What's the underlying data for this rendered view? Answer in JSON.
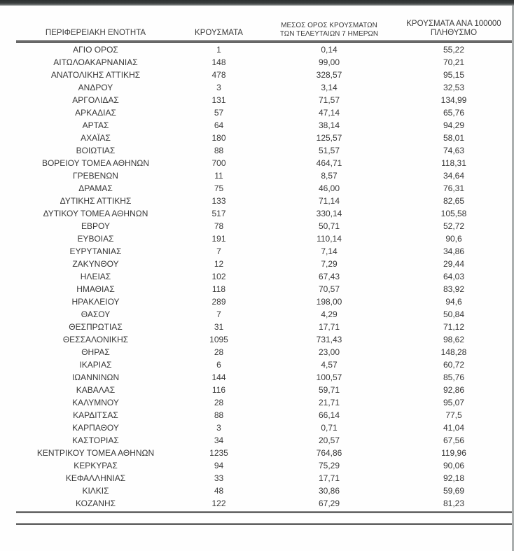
{
  "table": {
    "headers": {
      "region": "ΠΕΡΙΦΕΡΕΙΑΚΗ ΕΝΟΤΗΤΑ",
      "cases": "ΚΡΟΥΣΜΑΤΑ",
      "avg_line1": "ΜΕΣΟΣ ΟΡΟΣ ΚΡΟΥΣΜΑΤΩΝ",
      "avg_line2": "ΤΩΝ ΤΕΛΕΥΤΑΙΩΝ 7 ΗΜΕΡΩΝ",
      "per100k_line1": "ΚΡΟΥΣΜΑΤΑ ΑΝΑ 100000",
      "per100k_line2": "ΠΛΗΘΥΣΜΟ"
    },
    "rows": [
      [
        "ΑΓΙΟ ΟΡΟΣ",
        "1",
        "0,14",
        "55,22"
      ],
      [
        "ΑΙΤΩΛΟΑΚΑΡΝΑΝΙΑΣ",
        "148",
        "99,00",
        "70,21"
      ],
      [
        "ΑΝΑΤΟΛΙΚΗΣ ΑΤΤΙΚΗΣ",
        "478",
        "328,57",
        "95,15"
      ],
      [
        "ΑΝΔΡΟΥ",
        "3",
        "3,14",
        "32,53"
      ],
      [
        "ΑΡΓΟΛΙΔΑΣ",
        "131",
        "71,57",
        "134,99"
      ],
      [
        "ΑΡΚΑΔΙΑΣ",
        "57",
        "47,14",
        "65,76"
      ],
      [
        "ΑΡΤΑΣ",
        "64",
        "38,14",
        "94,29"
      ],
      [
        "ΑΧΑΪΑΣ",
        "180",
        "125,57",
        "58,01"
      ],
      [
        "ΒΟΙΩΤΙΑΣ",
        "88",
        "51,57",
        "74,63"
      ],
      [
        "ΒΟΡΕΙΟΥ ΤΟΜΕΑ ΑΘΗΝΩΝ",
        "700",
        "464,71",
        "118,31"
      ],
      [
        "ΓΡΕΒΕΝΩΝ",
        "11",
        "8,57",
        "34,64"
      ],
      [
        "ΔΡΑΜΑΣ",
        "75",
        "46,00",
        "76,31"
      ],
      [
        "ΔΥΤΙΚΗΣ ΑΤΤΙΚΗΣ",
        "133",
        "71,14",
        "82,65"
      ],
      [
        "ΔΥΤΙΚΟΥ ΤΟΜΕΑ ΑΘΗΝΩΝ",
        "517",
        "330,14",
        "105,58"
      ],
      [
        "ΕΒΡΟΥ",
        "78",
        "50,71",
        "52,72"
      ],
      [
        "ΕΥΒΟΙΑΣ",
        "191",
        "110,14",
        "90,6"
      ],
      [
        "ΕΥΡΥΤΑΝΙΑΣ",
        "7",
        "7,14",
        "34,86"
      ],
      [
        "ΖΑΚΥΝΘΟΥ",
        "12",
        "7,29",
        "29,44"
      ],
      [
        "ΗΛΕΙΑΣ",
        "102",
        "67,43",
        "64,03"
      ],
      [
        "ΗΜΑΘΙΑΣ",
        "118",
        "70,57",
        "83,92"
      ],
      [
        "ΗΡΑΚΛΕΙΟΥ",
        "289",
        "198,00",
        "94,6"
      ],
      [
        "ΘΑΣΟΥ",
        "7",
        "4,29",
        "50,84"
      ],
      [
        "ΘΕΣΠΡΩΤΙΑΣ",
        "31",
        "17,71",
        "71,12"
      ],
      [
        "ΘΕΣΣΑΛΟΝΙΚΗΣ",
        "1095",
        "731,43",
        "98,62"
      ],
      [
        "ΘΗΡΑΣ",
        "28",
        "23,00",
        "148,28"
      ],
      [
        "ΙΚΑΡΙΑΣ",
        "6",
        "4,57",
        "60,72"
      ],
      [
        "ΙΩΑΝΝΙΝΩΝ",
        "144",
        "100,57",
        "85,76"
      ],
      [
        "ΚΑΒΑΛΑΣ",
        "116",
        "59,71",
        "92,86"
      ],
      [
        "ΚΑΛΥΜΝΟΥ",
        "28",
        "21,71",
        "95,07"
      ],
      [
        "ΚΑΡΔΙΤΣΑΣ",
        "88",
        "66,14",
        "77,5"
      ],
      [
        "ΚΑΡΠΑΘΟΥ",
        "3",
        "0,71",
        "41,04"
      ],
      [
        "ΚΑΣΤΟΡΙΑΣ",
        "34",
        "20,57",
        "67,56"
      ],
      [
        "ΚΕΝΤΡΙΚΟΥ ΤΟΜΕΑ ΑΘΗΝΩΝ",
        "1235",
        "764,86",
        "119,96"
      ],
      [
        "ΚΕΡΚΥΡΑΣ",
        "94",
        "75,29",
        "90,06"
      ],
      [
        "ΚΕΦΑΛΛΗΝΙΑΣ",
        "33",
        "17,71",
        "92,18"
      ],
      [
        "ΚΙΛΚΙΣ",
        "48",
        "30,86",
        "59,69"
      ],
      [
        "ΚΟΖΑΝΗΣ",
        "122",
        "67,29",
        "81,23"
      ]
    ]
  },
  "colors": {
    "top_bar": "#2c3030",
    "rule": "#3e3e3e",
    "text": "#383838"
  }
}
